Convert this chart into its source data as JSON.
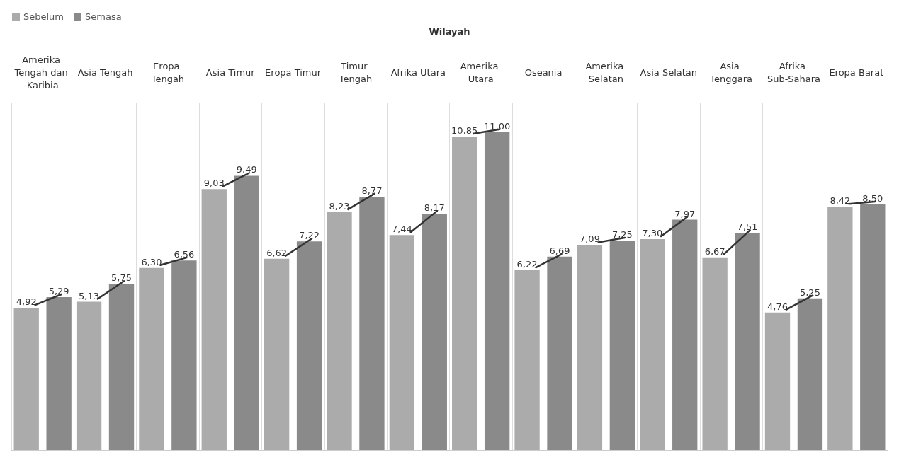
{
  "chart_data": {
    "type": "bar",
    "xlabel": "Wilayah",
    "categories": [
      "Amerika Tengah dan Karibia",
      "Asia Tengah",
      "Eropa Tengah",
      "Asia Timur",
      "Eropa Timur",
      "Timur Tengah",
      "Afrika Utara",
      "Amerika Utara",
      "Oseania",
      "Amerika Selatan",
      "Asia Selatan",
      "Asia Tenggara",
      "Afrika Sub-Sahara",
      "Eropa Barat"
    ],
    "series": [
      {
        "name": "Sebelum",
        "color": "#ababab",
        "values": [
          4.92,
          5.13,
          6.3,
          9.03,
          6.62,
          8.23,
          7.44,
          10.85,
          6.22,
          7.09,
          7.3,
          6.67,
          4.76,
          8.42
        ],
        "value_labels": [
          "4,92",
          "5,13",
          "6,30",
          "9,03",
          "6,62",
          "8,23",
          "7,44",
          "10,85",
          "6,22",
          "7,09",
          "7,30",
          "6,67",
          "4,76",
          "8,42"
        ]
      },
      {
        "name": "Semasa",
        "color": "#8a8a8a",
        "values": [
          5.29,
          5.75,
          6.56,
          9.49,
          7.22,
          8.77,
          8.17,
          11.0,
          6.69,
          7.25,
          7.97,
          7.51,
          5.25,
          8.5
        ],
        "value_labels": [
          "5,29",
          "5,75",
          "6,56",
          "9,49",
          "7,22",
          "8,77",
          "8,17",
          "11,00",
          "6,69",
          "7,25",
          "7,97",
          "7,51",
          "5,25",
          "8,50"
        ]
      }
    ],
    "grid": "x",
    "legend": "top left"
  }
}
